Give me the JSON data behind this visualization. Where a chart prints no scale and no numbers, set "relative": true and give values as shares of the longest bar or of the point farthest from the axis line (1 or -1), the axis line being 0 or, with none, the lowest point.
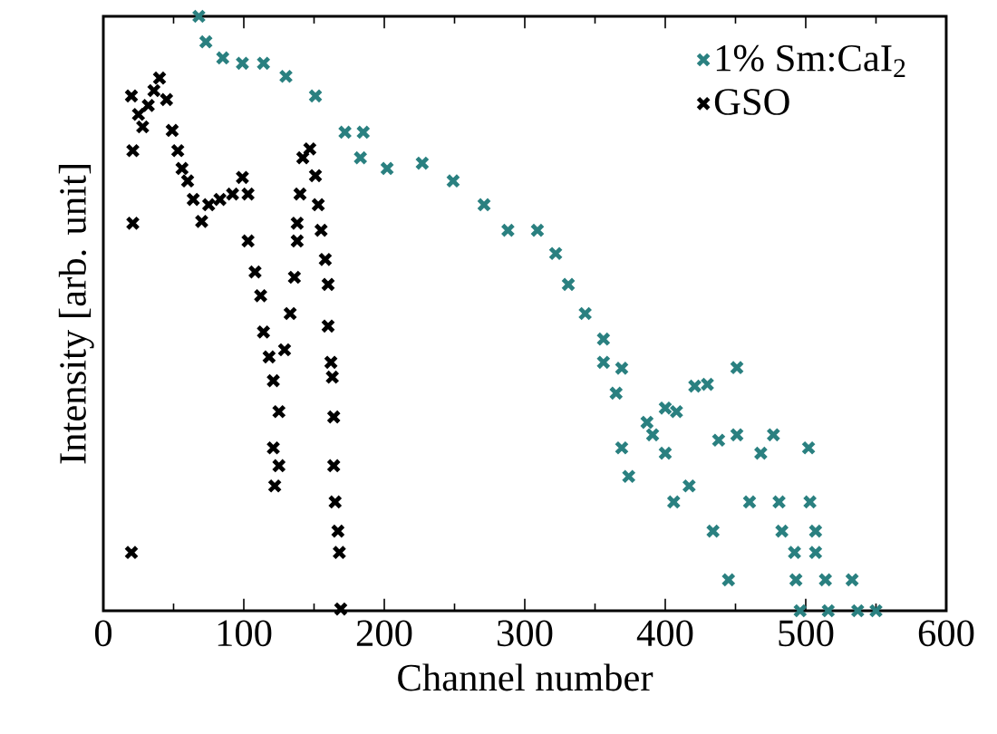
{
  "chart_data": {
    "type": "scatter",
    "relative": true,
    "xlabel": "Channel number",
    "ylabel": "Intensity [arb. unit]",
    "xlim": [
      0,
      600
    ],
    "xticks": [
      0,
      100,
      200,
      300,
      400,
      500,
      600
    ],
    "marker": "cross",
    "legend": "top right",
    "series": [
      {
        "name": "1% Sm:CaI$_{2}$",
        "color": "#2a8080",
        "x": [
          68,
          73,
          85,
          99,
          114,
          130,
          151,
          172,
          183,
          185,
          202,
          227,
          249,
          271,
          288,
          309,
          322,
          331,
          343,
          356,
          356,
          369,
          365,
          369,
          374,
          387,
          400,
          406,
          408,
          391,
          400,
          417,
          421,
          430,
          434,
          438,
          445,
          451,
          451,
          460,
          468,
          477,
          481,
          483,
          492,
          493,
          496,
          502,
          503,
          507,
          507,
          514,
          516,
          533,
          537,
          550
        ],
        "values": [
          1.0,
          0.957,
          0.93,
          0.921,
          0.921,
          0.899,
          0.866,
          0.805,
          0.762,
          0.805,
          0.744,
          0.753,
          0.723,
          0.683,
          0.64,
          0.64,
          0.601,
          0.549,
          0.5,
          0.457,
          0.418,
          0.408,
          0.366,
          0.274,
          0.226,
          0.317,
          0.265,
          0.183,
          0.335,
          0.296,
          0.341,
          0.21,
          0.378,
          0.381,
          0.134,
          0.287,
          0.052,
          0.409,
          0.296,
          0.183,
          0.265,
          0.296,
          0.183,
          0.134,
          0.098,
          0.052,
          0.0,
          0.274,
          0.183,
          0.134,
          0.098,
          0.052,
          0.0,
          0.052,
          0.0,
          0.0
        ]
      },
      {
        "name": "GSO",
        "color": "#000000",
        "x": [
          20,
          21,
          21,
          20,
          25,
          28,
          32,
          36,
          40,
          45,
          49,
          53,
          56,
          60,
          64,
          70,
          75,
          83,
          92,
          99,
          103,
          103,
          108,
          112,
          114,
          118,
          121,
          125,
          121,
          125,
          122,
          129,
          133,
          136,
          138,
          138,
          140,
          142,
          147,
          151,
          153,
          155,
          158,
          160,
          160,
          162,
          163,
          164,
          164,
          165,
          167,
          168,
          169
        ],
        "values": [
          0.866,
          0.774,
          0.652,
          0.098,
          0.835,
          0.814,
          0.85,
          0.875,
          0.896,
          0.86,
          0.808,
          0.774,
          0.744,
          0.723,
          0.692,
          0.655,
          0.683,
          0.692,
          0.701,
          0.729,
          0.701,
          0.622,
          0.57,
          0.53,
          0.469,
          0.427,
          0.387,
          0.335,
          0.274,
          0.244,
          0.21,
          0.439,
          0.5,
          0.561,
          0.622,
          0.652,
          0.701,
          0.762,
          0.777,
          0.732,
          0.683,
          0.64,
          0.591,
          0.549,
          0.479,
          0.418,
          0.393,
          0.326,
          0.244,
          0.183,
          0.134,
          0.098,
          0.003
        ]
      }
    ]
  }
}
